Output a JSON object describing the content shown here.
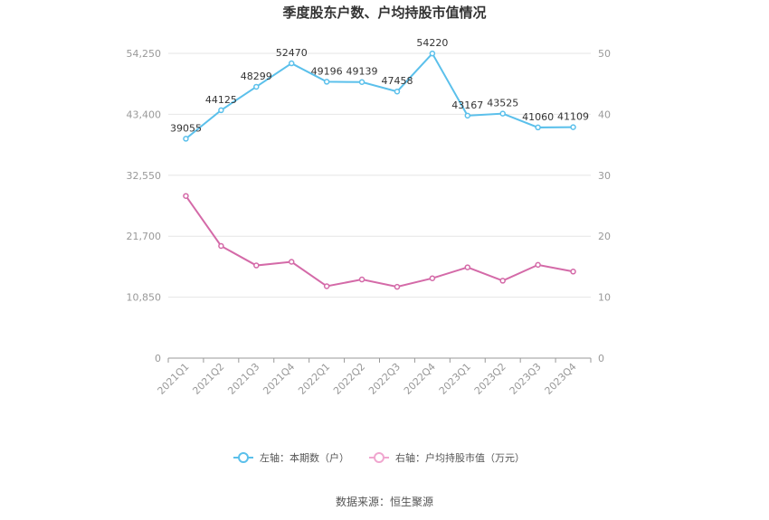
{
  "chart_data": {
    "type": "line",
    "title": "季度股东户数、户均持股市值情况",
    "categories": [
      "2021Q1",
      "2021Q2",
      "2021Q3",
      "2021Q4",
      "2022Q1",
      "2022Q2",
      "2022Q3",
      "2022Q4",
      "2023Q1",
      "2023Q2",
      "2023Q3",
      "2023Q4"
    ],
    "left_axis": {
      "ticks": [
        "0",
        "10,850",
        "21,700",
        "32,550",
        "43,400",
        "54,250"
      ],
      "ylim": [
        0,
        54250
      ]
    },
    "right_axis": {
      "ticks": [
        "0",
        "10",
        "20",
        "30",
        "40",
        "50"
      ],
      "ylim": [
        0,
        50
      ]
    },
    "series": [
      {
        "name": "左轴：本期数（户）",
        "axis": "left",
        "color": "#5bc0eb",
        "values": [
          39055,
          44125,
          48299,
          52470,
          49196,
          49139,
          47458,
          54220,
          43167,
          43525,
          41060,
          41109
        ],
        "labels": [
          "39055",
          "44125",
          "48299",
          "52470",
          "49196",
          "49139",
          "47458",
          "54220",
          "43167",
          "43525",
          "41060",
          "41109"
        ]
      },
      {
        "name": "右轴：户均持股市值（万元）",
        "axis": "right",
        "color": "#d46aa8",
        "values": [
          26.6,
          18.4,
          15.2,
          15.8,
          11.8,
          12.9,
          11.7,
          13.1,
          14.9,
          12.7,
          15.3,
          14.2
        ]
      }
    ],
    "grid": true,
    "legend_position": "bottom"
  },
  "source": "数据来源：恒生聚源"
}
